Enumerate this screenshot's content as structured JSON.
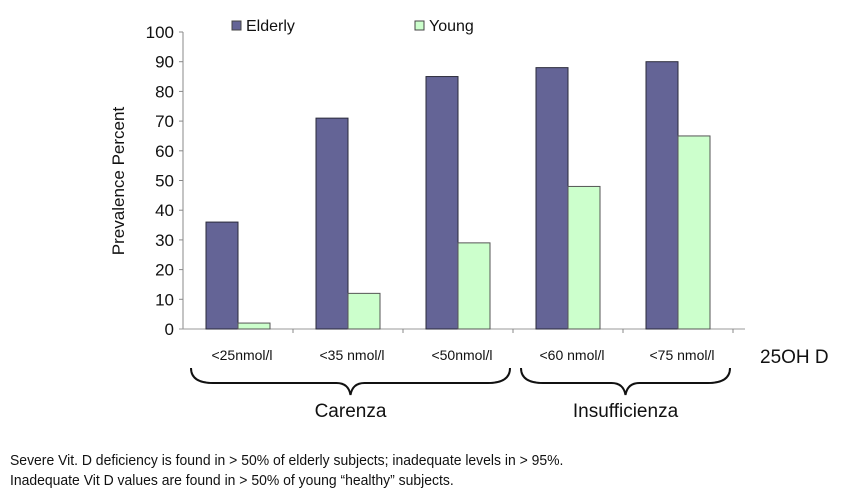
{
  "chart_data": {
    "type": "bar",
    "title": "",
    "xlabel": "25OH D",
    "ylabel": "Prevalence Percent",
    "ylim": [
      0,
      100
    ],
    "yticks": [
      0,
      10,
      20,
      30,
      40,
      50,
      60,
      70,
      80,
      90,
      100
    ],
    "grid": false,
    "legend_position": "top",
    "categories": [
      "<25nmol/l",
      "<35 nmol/l",
      "<50nmol/l",
      "<60 nmol/l",
      "<75 nmol/l"
    ],
    "series": [
      {
        "name": "Elderly",
        "color": "#646496",
        "values": [
          36,
          71,
          85,
          88,
          90
        ]
      },
      {
        "name": "Young",
        "color": "#ccffcc",
        "values": [
          2,
          12,
          29,
          48,
          65
        ]
      }
    ],
    "groups": [
      {
        "label": "Carenza",
        "from": 0,
        "to": 2
      },
      {
        "label": "Insufficienza",
        "from": 3,
        "to": 4
      }
    ]
  },
  "caption": {
    "line1": "Severe Vit. D deficiency is found in > 50% of elderly subjects; inadequate levels in > 95%.",
    "line2": "Inadequate Vit D values are found in > 50% of young “healthy” subjects."
  }
}
